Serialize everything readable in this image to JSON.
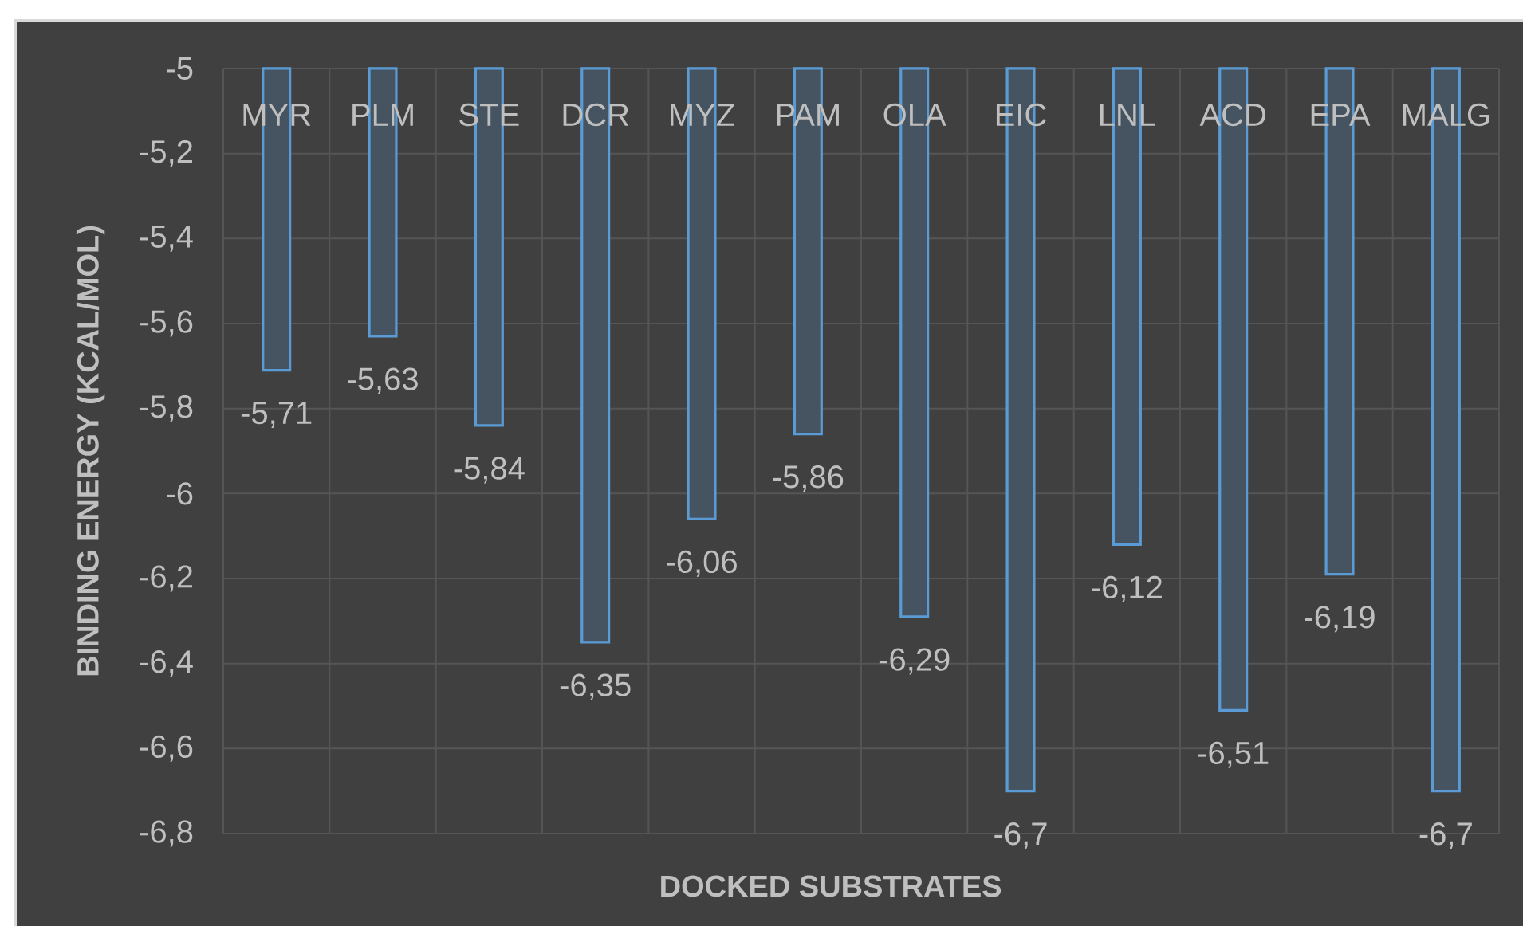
{
  "chart_data": {
    "type": "bar",
    "xlabel": "DOCKED SUBSTRATES",
    "ylabel": "BINDING ENERGY (KCAL/MOL)",
    "categories": [
      "MYR",
      "PLM",
      "STE",
      "DCR",
      "MYZ",
      "PAM",
      "OLA",
      "EIC",
      "LNL",
      "ACD",
      "EPA",
      "MALG"
    ],
    "values": [
      -5.71,
      -5.63,
      -5.84,
      -6.35,
      -6.06,
      -5.86,
      -6.29,
      -6.7,
      -6.12,
      -6.51,
      -6.19,
      -6.7
    ],
    "value_labels": [
      "-5,71",
      "-5,63",
      "-5,84",
      "-6,35",
      "-6,06",
      "-5,86",
      "-6,29",
      "-6,7",
      "-6,12",
      "-6,51",
      "-6,19",
      "-6,7"
    ],
    "color": "#5b9bd5",
    "ylim": [
      -6.8,
      -5
    ],
    "yticks": [
      -5,
      {
        "value": -5.2,
        "label": "-5,2"
      },
      {
        "value": -5.4,
        "label": "-5,4"
      },
      {
        "value": -5.6,
        "label": "-5,6"
      },
      {
        "value": -5.8,
        "label": "-5,8"
      },
      -6,
      {
        "value": -6.2,
        "label": "-6,2"
      },
      {
        "value": -6.4,
        "label": "-6,4"
      },
      {
        "value": -6.6,
        "label": "-6,6"
      },
      {
        "value": -6.8,
        "label": "-6,8"
      }
    ],
    "grid": true
  }
}
